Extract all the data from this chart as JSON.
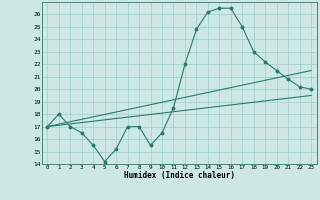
{
  "title": "",
  "xlabel": "Humidex (Indice chaleur)",
  "ylabel": "",
  "background_color": "#cde8e4",
  "grid_color": "#9ececa",
  "line_color": "#2a7a6a",
  "xlim": [
    -0.5,
    23.5
  ],
  "ylim": [
    14,
    27
  ],
  "yticks": [
    14,
    15,
    16,
    17,
    18,
    19,
    20,
    21,
    22,
    23,
    24,
    25,
    26
  ],
  "xtick_labels": [
    "0",
    "1",
    "2",
    "3",
    "4",
    "5",
    "6",
    "7",
    "8",
    "9",
    "10",
    "11",
    "12",
    "13",
    "14",
    "15",
    "16",
    "17",
    "18",
    "19",
    "20",
    "21",
    "22",
    "23"
  ],
  "xticks": [
    0,
    1,
    2,
    3,
    4,
    5,
    6,
    7,
    8,
    9,
    10,
    11,
    12,
    13,
    14,
    15,
    16,
    17,
    18,
    19,
    20,
    21,
    22,
    23
  ],
  "series1_x": [
    0,
    1,
    2,
    3,
    4,
    5,
    6,
    7,
    8,
    9,
    10,
    11,
    12,
    13,
    14,
    15,
    16,
    17,
    18,
    19,
    20,
    21,
    22,
    23
  ],
  "series1_y": [
    17.0,
    18.0,
    17.0,
    16.5,
    15.5,
    14.2,
    15.2,
    17.0,
    17.0,
    15.5,
    16.5,
    18.5,
    22.0,
    24.8,
    26.2,
    26.5,
    26.5,
    25.0,
    23.0,
    22.2,
    21.5,
    20.8,
    20.2,
    20.0
  ],
  "series2_x": [
    0,
    23
  ],
  "series2_y": [
    17.0,
    21.5
  ],
  "series3_x": [
    0,
    23
  ],
  "series3_y": [
    17.0,
    19.5
  ]
}
